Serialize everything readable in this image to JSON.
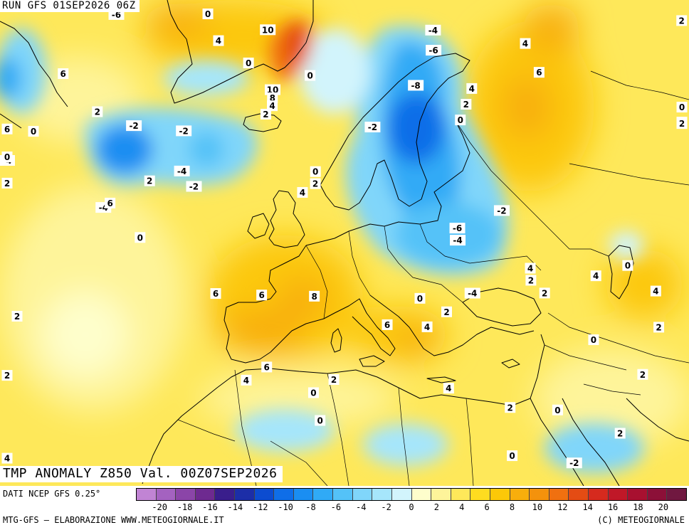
{
  "header": {
    "run_label": "RUN GFS 01SEP2026 06Z"
  },
  "map": {
    "product_title": "TMP ANOMALY Z850 Val. 00Z07SEP2026",
    "value_labels": [
      {
        "text": "-6",
        "lon": -38,
        "lat": 73
      },
      {
        "text": "0",
        "lon": -23,
        "lat": 74
      },
      {
        "text": "4",
        "lon": -21,
        "lat": 69
      },
      {
        "text": "6",
        "lon": -46,
        "lat": 66
      },
      {
        "text": "6",
        "lon": -66,
        "lat": 60
      },
      {
        "text": "-4",
        "lon": -64,
        "lat": 56
      },
      {
        "text": "2",
        "lon": -40,
        "lat": 61
      },
      {
        "text": "0",
        "lon": -50,
        "lat": 59
      },
      {
        "text": "-2",
        "lon": -34,
        "lat": 59
      },
      {
        "text": "-2",
        "lon": -26,
        "lat": 58
      },
      {
        "text": "0",
        "lon": -54,
        "lat": 56
      },
      {
        "text": "2",
        "lon": -60,
        "lat": 53
      },
      {
        "text": "-4",
        "lon": -38,
        "lat": 49
      },
      {
        "text": "6",
        "lon": -37,
        "lat": 49.5
      },
      {
        "text": "2",
        "lon": -31,
        "lat": 52
      },
      {
        "text": "-4",
        "lon": -26,
        "lat": 53
      },
      {
        "text": "-2",
        "lon": -24,
        "lat": 51
      },
      {
        "text": "0",
        "lon": -32,
        "lat": 45
      },
      {
        "text": "2",
        "lon": -50,
        "lat": 36
      },
      {
        "text": "6",
        "lon": -13,
        "lat": 37
      },
      {
        "text": "10",
        "lon": -13,
        "lat": 70
      },
      {
        "text": "0",
        "lon": -16,
        "lat": 66
      },
      {
        "text": "10",
        "lon": -12,
        "lat": 62.5
      },
      {
        "text": "8",
        "lon": -12,
        "lat": 61.5
      },
      {
        "text": "4",
        "lon": -12,
        "lat": 60.5
      },
      {
        "text": "2",
        "lon": -13,
        "lat": 59.5
      },
      {
        "text": "0",
        "lon": -6,
        "lat": 64
      },
      {
        "text": "0",
        "lon": -5,
        "lat": 52
      },
      {
        "text": "4",
        "lon": -7,
        "lat": 49.5
      },
      {
        "text": "2",
        "lon": -5,
        "lat": 50.5
      },
      {
        "text": "6",
        "lon": -20,
        "lat": 37.5
      },
      {
        "text": "8",
        "lon": -5,
        "lat": 36.5
      },
      {
        "text": "6",
        "lon": -12,
        "lat": 28
      },
      {
        "text": "4",
        "lon": -15,
        "lat": 26.5
      },
      {
        "text": "2",
        "lon": -58,
        "lat": 29
      },
      {
        "text": "2",
        "lon": -2,
        "lat": 26
      },
      {
        "text": "0",
        "lon": -5,
        "lat": 24.5
      },
      {
        "text": "0",
        "lon": -4,
        "lat": 21
      },
      {
        "text": "4",
        "lon": -65,
        "lat": 19
      },
      {
        "text": "-4",
        "lon": 14,
        "lat": 70
      },
      {
        "text": "-6",
        "lon": 14,
        "lat": 67.5
      },
      {
        "text": "-8",
        "lon": 11,
        "lat": 63
      },
      {
        "text": "4",
        "lon": 20,
        "lat": 63
      },
      {
        "text": "2",
        "lon": 19,
        "lat": 61
      },
      {
        "text": "0",
        "lon": 18,
        "lat": 59
      },
      {
        "text": "-2",
        "lon": 4,
        "lat": 57.5
      },
      {
        "text": "-2",
        "lon": 24,
        "lat": 48
      },
      {
        "text": "-6",
        "lon": 17,
        "lat": 45.5
      },
      {
        "text": "-4",
        "lon": 17,
        "lat": 44
      },
      {
        "text": "4",
        "lon": 28,
        "lat": 41
      },
      {
        "text": "2",
        "lon": 28,
        "lat": 39.5
      },
      {
        "text": "-4",
        "lon": 19,
        "lat": 37.5
      },
      {
        "text": "0",
        "lon": 11,
        "lat": 36.5
      },
      {
        "text": "2",
        "lon": 15,
        "lat": 35
      },
      {
        "text": "4",
        "lon": 12,
        "lat": 33
      },
      {
        "text": "6",
        "lon": 6,
        "lat": 33
      },
      {
        "text": "2",
        "lon": 30,
        "lat": 38
      },
      {
        "text": "0",
        "lon": 37,
        "lat": 32.5
      },
      {
        "text": "4",
        "lon": 15,
        "lat": 25.5
      },
      {
        "text": "2",
        "lon": 24,
        "lat": 23.5
      },
      {
        "text": "0",
        "lon": 31,
        "lat": 23.5
      },
      {
        "text": "-2",
        "lon": 33,
        "lat": 17
      },
      {
        "text": "0",
        "lon": 24,
        "lat": 17.5
      },
      {
        "text": "2",
        "lon": 40,
        "lat": 21
      },
      {
        "text": "2",
        "lon": 44,
        "lat": 28.5
      },
      {
        "text": "4",
        "lon": 38,
        "lat": 40.5
      },
      {
        "text": "0",
        "lon": 43,
        "lat": 42
      },
      {
        "text": "2",
        "lon": 47,
        "lat": 34.5
      },
      {
        "text": "4",
        "lon": 47,
        "lat": 39
      },
      {
        "text": "4",
        "lon": 29,
        "lat": 69
      },
      {
        "text": "6",
        "lon": 31,
        "lat": 65.5
      },
      {
        "text": "2",
        "lon": 55,
        "lat": 73
      },
      {
        "text": "0",
        "lon": 61,
        "lat": 62.5
      },
      {
        "text": "4",
        "lon": 58,
        "lat": 60.5
      },
      {
        "text": "2",
        "lon": 62,
        "lat": 60.5
      }
    ]
  },
  "legend": {
    "source": "DATI NCEP GFS 0.25°",
    "colors": [
      "#c184d4",
      "#a462c0",
      "#8b45a8",
      "#6e2a90",
      "#3a1e8c",
      "#1c2ea8",
      "#0c4cd0",
      "#0f6ee8",
      "#1a8ef2",
      "#30aaf6",
      "#54c2f8",
      "#80d6fa",
      "#a6e6fb",
      "#d2f4fc",
      "#fefecc",
      "#fef49a",
      "#fee85a",
      "#fedc20",
      "#fcc808",
      "#f8ae0c",
      "#f4920c",
      "#f07010",
      "#e44c14",
      "#d62a1e",
      "#c01828",
      "#a81030",
      "#8c1038",
      "#701840"
    ],
    "ticks": [
      "-20",
      "-18",
      "-16",
      "-14",
      "-12",
      "-10",
      "-8",
      "-6",
      "-4",
      "-2",
      "0",
      "2",
      "4",
      "6",
      "8",
      "10",
      "12",
      "14",
      "16",
      "18",
      "20"
    ],
    "credit_left": "MTG-GFS — ELABORAZIONE WWW.METEOGIORNALE.IT",
    "credit_right": "(C) METEOGIORNALE"
  }
}
